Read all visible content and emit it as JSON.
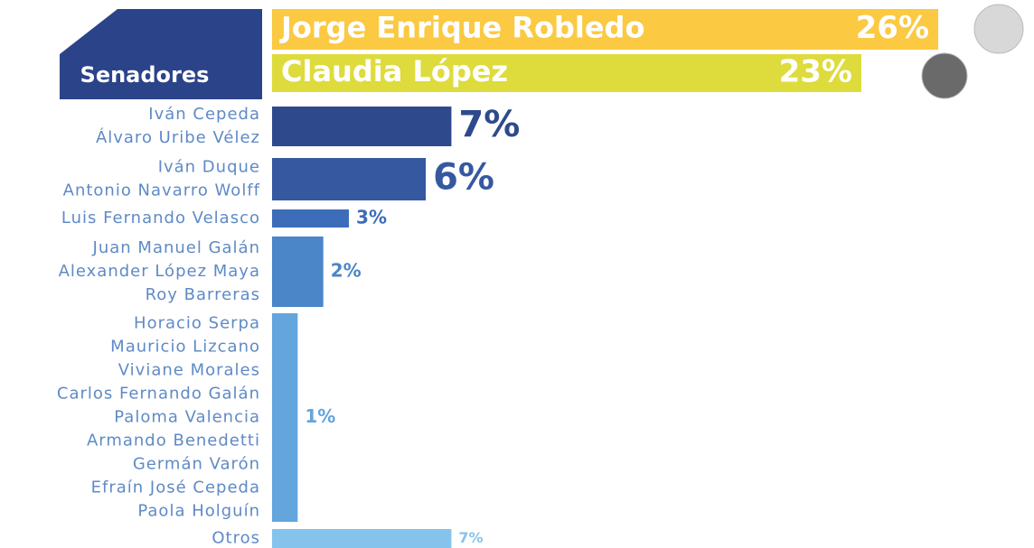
{
  "chart_data": {
    "type": "bar",
    "orientation": "horizontal",
    "title": "Senadores",
    "categories": [
      [
        "Jorge Enrique Robledo"
      ],
      [
        "Claudia López"
      ],
      [
        "Iván Cepeda",
        "Álvaro Uribe Vélez"
      ],
      [
        "Iván Duque",
        "Antonio Navarro Wolff"
      ],
      [
        "Luis Fernando Velasco"
      ],
      [
        "Juan Manuel Galán",
        "Alexander López Maya",
        "Roy Barreras"
      ],
      [
        "Horacio Serpa",
        "Mauricio Lizcano",
        "Viviane Morales",
        "Carlos Fernando Galán",
        "Paloma Valencia",
        "Armando Benedetti",
        "Germán Varón",
        "Efraín José Cepeda",
        "Paola Holguín"
      ],
      [
        "Otros"
      ]
    ],
    "values": [
      26,
      23,
      7,
      6,
      3,
      2,
      1,
      7
    ],
    "value_labels": [
      "26%",
      "23%",
      "7%",
      "6%",
      "3%",
      "2%",
      "1%",
      "7%"
    ],
    "colors": [
      "#fbc942",
      "#dedb3c",
      "#2f4a8c",
      "#3658a0",
      "#3d6db8",
      "#4a86c8",
      "#63a5dc",
      "#86c3ec"
    ],
    "xlim": [
      0,
      26
    ]
  }
}
